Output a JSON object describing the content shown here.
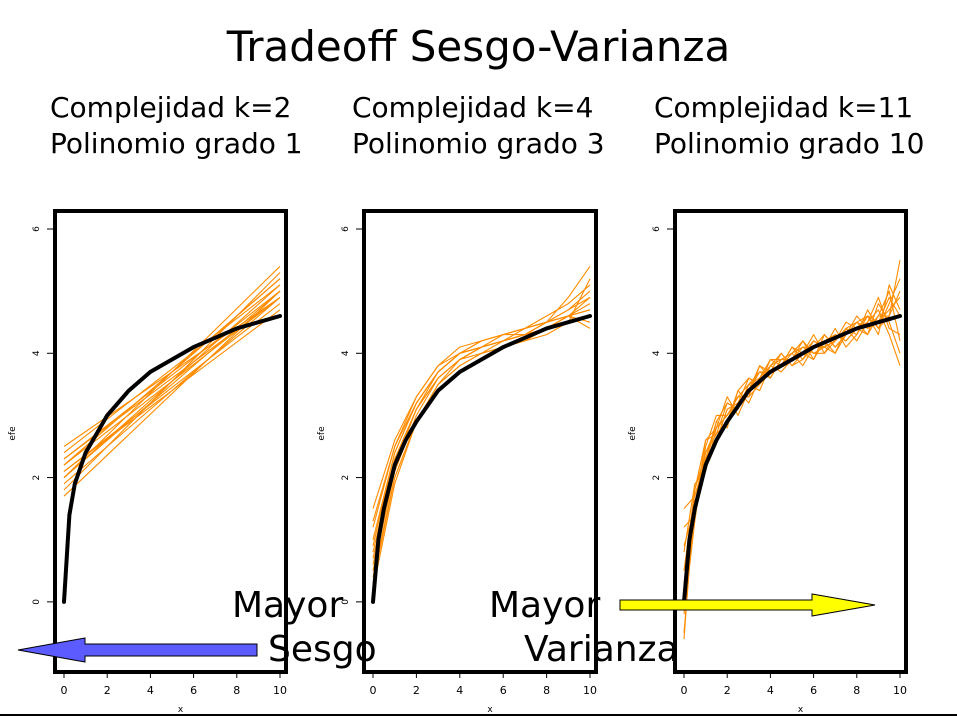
{
  "slide": {
    "title": "Tradeoff Sesgo-Varianza",
    "left_overlay": {
      "line1": "Mayor",
      "line2": "Sesgo"
    },
    "right_overlay": {
      "line1": "Mayor",
      "line2": "Varianza"
    },
    "arrow_left_color": "#5b5bff",
    "arrow_right_color": "#ffff00"
  },
  "chart_data": [
    {
      "type": "line",
      "title": "Complejidad k=2\nPolinomio grado 1",
      "xlabel": "x",
      "ylabel": "efe",
      "xlim": [
        0,
        10
      ],
      "ylim": [
        -1,
        6
      ],
      "xticks": [
        0,
        2,
        4,
        6,
        8,
        10
      ],
      "yticks": [
        0,
        2,
        4,
        6
      ],
      "true_curve": {
        "color": "#000000",
        "x": [
          0,
          0.25,
          0.5,
          1,
          1.5,
          2,
          3,
          4,
          5,
          6,
          7,
          8,
          9,
          10
        ],
        "y": [
          0,
          1.4,
          1.9,
          2.4,
          2.7,
          3.0,
          3.4,
          3.7,
          3.9,
          4.1,
          4.25,
          4.4,
          4.5,
          4.6
        ]
      },
      "fits": {
        "color": "#ff8c00",
        "x": [
          0,
          10
        ],
        "lines": [
          [
            2.0,
            5.0
          ],
          [
            2.2,
            5.2
          ],
          [
            2.3,
            4.9
          ],
          [
            1.8,
            5.3
          ],
          [
            2.1,
            4.8
          ],
          [
            2.4,
            5.1
          ],
          [
            1.9,
            4.9
          ],
          [
            2.0,
            5.4
          ],
          [
            2.3,
            5.0
          ],
          [
            2.1,
            4.7
          ],
          [
            2.2,
            5.2
          ],
          [
            1.7,
            5.0
          ],
          [
            2.5,
            4.9
          ],
          [
            2.0,
            5.1
          ],
          [
            2.2,
            4.9
          ]
        ]
      }
    },
    {
      "type": "line",
      "title": "Complejidad k=4\nPolinomio grado 3",
      "xlabel": "x",
      "ylabel": "efe",
      "xlim": [
        0,
        10
      ],
      "ylim": [
        -1,
        6
      ],
      "xticks": [
        0,
        2,
        4,
        6,
        8,
        10
      ],
      "yticks": [
        0,
        2,
        4,
        6
      ],
      "true_curve": {
        "color": "#000000",
        "x": [
          0,
          0.25,
          0.5,
          1,
          1.5,
          2,
          3,
          4,
          5,
          6,
          7,
          8,
          9,
          10
        ],
        "y": [
          0,
          1.0,
          1.5,
          2.2,
          2.6,
          2.9,
          3.4,
          3.7,
          3.9,
          4.1,
          4.25,
          4.4,
          4.5,
          4.6
        ]
      },
      "fits": {
        "color": "#ff8c00",
        "x": [
          0,
          1,
          2,
          3,
          4,
          5,
          6,
          7,
          8,
          9,
          10
        ],
        "lines": [
          [
            0.6,
            2.2,
            3.1,
            3.6,
            3.9,
            4.0,
            4.1,
            4.2,
            4.4,
            4.6,
            4.9
          ],
          [
            0.9,
            2.4,
            3.2,
            3.7,
            4.0,
            4.1,
            4.2,
            4.3,
            4.4,
            4.6,
            4.8
          ],
          [
            0.3,
            2.0,
            2.9,
            3.5,
            3.8,
            4.0,
            4.1,
            4.2,
            4.3,
            4.5,
            5.2
          ],
          [
            1.2,
            2.5,
            3.3,
            3.8,
            4.1,
            4.2,
            4.3,
            4.3,
            4.4,
            4.5,
            4.6
          ],
          [
            0.5,
            2.1,
            3.0,
            3.6,
            3.9,
            4.1,
            4.2,
            4.3,
            4.5,
            4.7,
            5.0
          ],
          [
            1.5,
            2.6,
            3.3,
            3.8,
            4.0,
            4.2,
            4.3,
            4.4,
            4.5,
            4.6,
            4.5
          ],
          [
            0.8,
            2.3,
            3.1,
            3.6,
            3.9,
            4.1,
            4.2,
            4.4,
            4.6,
            4.8,
            5.1
          ],
          [
            0.4,
            2.0,
            2.9,
            3.5,
            3.9,
            4.1,
            4.3,
            4.4,
            4.5,
            4.6,
            4.7
          ],
          [
            1.0,
            2.4,
            3.2,
            3.7,
            4.0,
            4.2,
            4.3,
            4.4,
            4.5,
            4.6,
            4.4
          ],
          [
            0.7,
            2.2,
            3.1,
            3.7,
            4.0,
            4.1,
            4.2,
            4.3,
            4.5,
            4.9,
            5.4
          ],
          [
            1.3,
            2.5,
            3.2,
            3.7,
            4.0,
            4.1,
            4.2,
            4.3,
            4.4,
            4.6,
            4.7
          ],
          [
            0.2,
            1.9,
            2.9,
            3.5,
            3.8,
            4.0,
            4.2,
            4.3,
            4.5,
            4.7,
            4.9
          ]
        ]
      }
    },
    {
      "type": "line",
      "title": "Complejidad k=11\nPolinomio grado 10",
      "xlabel": "x",
      "ylabel": "efe",
      "xlim": [
        0,
        10
      ],
      "ylim": [
        -1,
        6
      ],
      "xticks": [
        0,
        2,
        4,
        6,
        8,
        10
      ],
      "yticks": [
        0,
        2,
        4,
        6
      ],
      "true_curve": {
        "color": "#000000",
        "x": [
          0,
          0.25,
          0.5,
          1,
          1.5,
          2,
          3,
          4,
          5,
          6,
          7,
          8,
          9,
          10
        ],
        "y": [
          0,
          1.0,
          1.5,
          2.2,
          2.6,
          2.9,
          3.4,
          3.7,
          3.9,
          4.1,
          4.25,
          4.4,
          4.5,
          4.6
        ]
      },
      "fits": {
        "color": "#ff8c00",
        "x": [
          0,
          0.5,
          1,
          1.5,
          2,
          2.5,
          3,
          3.5,
          4,
          4.5,
          5,
          5.5,
          6,
          6.5,
          7,
          7.5,
          8,
          8.5,
          9,
          9.5,
          10
        ],
        "lines": [
          [
            -0.5,
            1.6,
            2.3,
            2.9,
            3.2,
            3.1,
            3.5,
            3.7,
            3.6,
            3.9,
            4.0,
            3.8,
            4.1,
            4.2,
            4.0,
            4.3,
            4.5,
            4.3,
            4.6,
            5.0,
            4.2
          ],
          [
            0.5,
            1.8,
            2.6,
            2.8,
            3.0,
            3.3,
            3.3,
            3.5,
            3.8,
            3.7,
            3.9,
            4.1,
            4.0,
            4.0,
            4.3,
            4.2,
            4.4,
            4.6,
            4.4,
            4.8,
            5.2
          ],
          [
            1.2,
            1.4,
            2.2,
            2.6,
            3.1,
            3.2,
            3.6,
            3.5,
            3.7,
            4.0,
            3.8,
            3.9,
            4.2,
            4.1,
            4.2,
            4.4,
            4.2,
            4.5,
            4.7,
            4.3,
            3.8
          ],
          [
            0.0,
            1.5,
            2.4,
            2.7,
            2.9,
            3.4,
            3.2,
            3.6,
            3.9,
            3.8,
            4.1,
            4.0,
            3.9,
            4.3,
            4.1,
            4.3,
            4.6,
            4.4,
            4.5,
            4.9,
            4.6
          ],
          [
            0.8,
            1.9,
            2.1,
            2.8,
            3.3,
            3.0,
            3.4,
            3.8,
            3.6,
            3.9,
            3.9,
            4.2,
            4.0,
            4.1,
            4.4,
            4.1,
            4.3,
            4.7,
            4.4,
            4.6,
            5.5
          ],
          [
            -0.2,
            1.3,
            2.5,
            3.0,
            3.0,
            3.3,
            3.5,
            3.4,
            3.8,
            4.0,
            3.8,
            4.0,
            4.3,
            4.0,
            4.2,
            4.5,
            4.4,
            4.3,
            4.8,
            4.5,
            4.0
          ],
          [
            1.5,
            1.7,
            2.3,
            2.6,
            3.1,
            3.2,
            3.4,
            3.7,
            3.7,
            3.8,
            4.1,
            3.9,
            4.1,
            4.3,
            4.1,
            4.3,
            4.5,
            4.6,
            4.5,
            4.7,
            4.9
          ],
          [
            0.3,
            1.6,
            2.2,
            2.9,
            2.8,
            3.4,
            3.6,
            3.5,
            3.9,
            3.9,
            4.0,
            4.2,
            3.9,
            4.2,
            4.3,
            4.2,
            4.4,
            4.5,
            4.9,
            4.4,
            4.3
          ],
          [
            0.9,
            1.5,
            2.6,
            2.7,
            3.2,
            3.1,
            3.5,
            3.6,
            3.8,
            3.9,
            3.9,
            4.0,
            4.2,
            4.1,
            4.2,
            4.4,
            4.3,
            4.6,
            4.3,
            5.1,
            4.7
          ],
          [
            -0.6,
            1.8,
            2.4,
            2.8,
            3.0,
            3.3,
            3.3,
            3.8,
            3.7,
            3.8,
            4.0,
            4.1,
            4.1,
            4.1,
            4.0,
            4.4,
            4.5,
            4.4,
            4.6,
            4.6,
            5.0
          ]
        ]
      }
    }
  ]
}
